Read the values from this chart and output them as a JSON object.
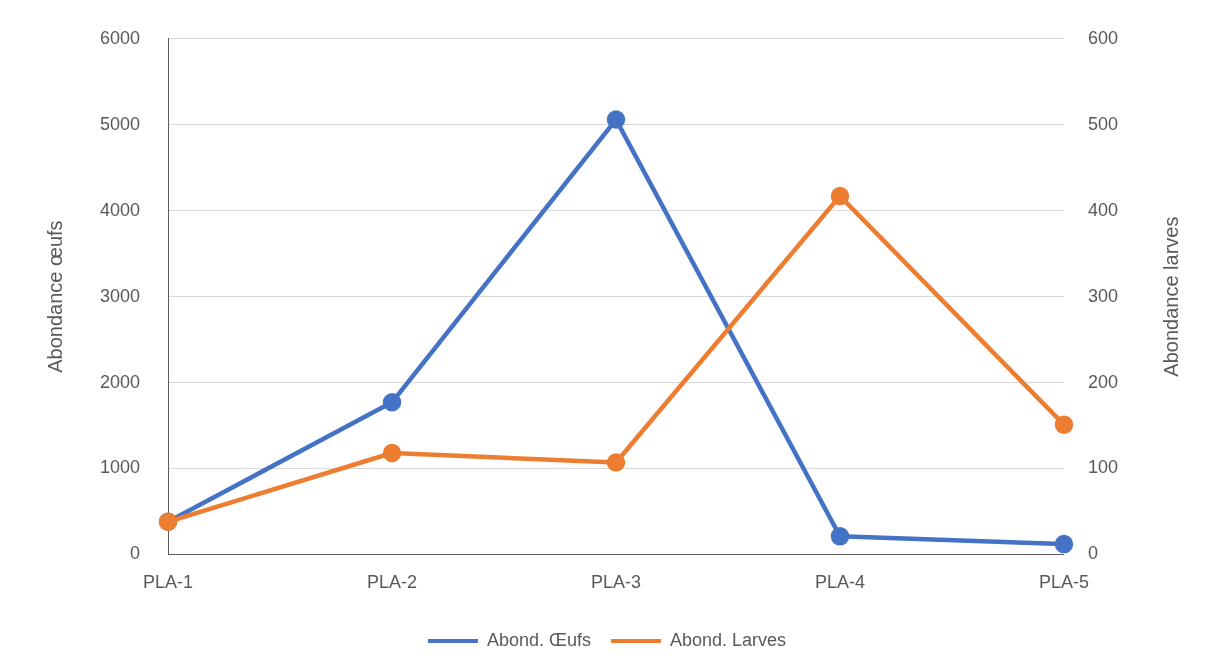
{
  "chart_data": {
    "type": "line",
    "ylabel": "Abondance œufs",
    "y2label": "Abondance larves",
    "categories": [
      "PLA-1",
      "PLA-2",
      "PLA-3",
      "PLA-4",
      "PLA-5"
    ],
    "series": [
      {
        "name": "Abond. Œufs",
        "color": "#4472c4",
        "values": [
          380,
          1770,
          5060,
          210,
          120
        ]
      },
      {
        "name": "Abond. Larves",
        "color": "#ed7d31",
        "axis": "y2",
        "values": [
          38,
          118,
          107,
          417,
          151
        ]
      }
    ],
    "ylim": [
      0,
      6000
    ],
    "yticks": [
      0,
      1000,
      2000,
      3000,
      4000,
      5000,
      6000
    ],
    "y2lim": [
      0,
      600
    ],
    "y2ticks": [
      0,
      100,
      200,
      300,
      400,
      500,
      600
    ],
    "grid": "y",
    "legend": "bottom",
    "marker": "circle",
    "line_style": "solid"
  }
}
